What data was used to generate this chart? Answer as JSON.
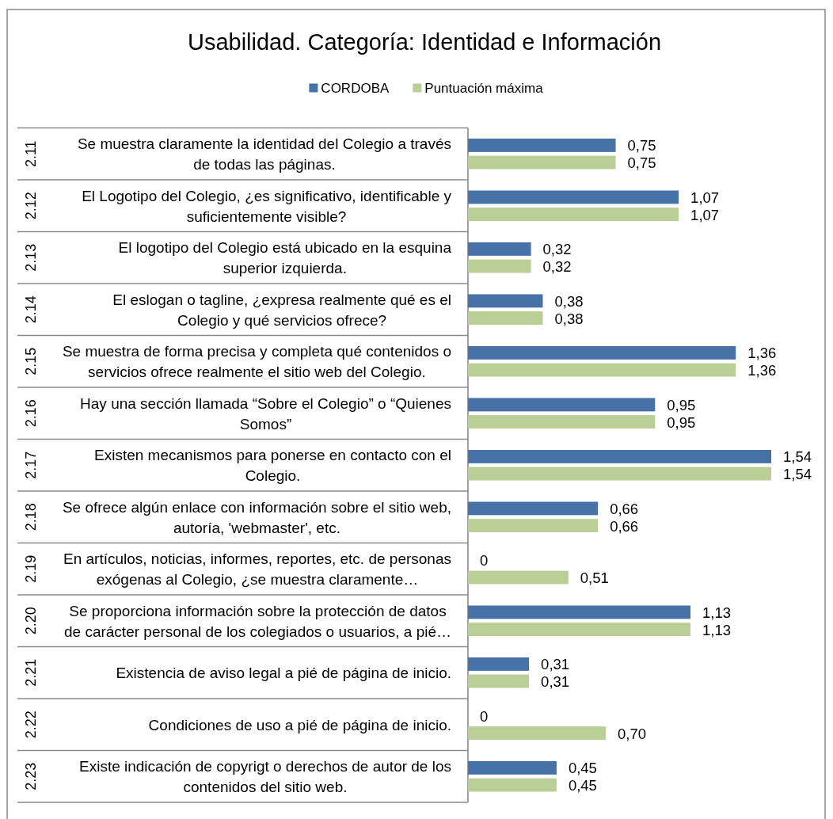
{
  "chart_data": {
    "type": "bar",
    "orientation": "horizontal",
    "title": "Usabilidad. Categoría: Identidad e Información",
    "legend": "top",
    "categories": [
      "Se muestra claramente la identidad del Colegio a través de todas las páginas.",
      "El Logotipo del Colegio, ¿es significativo, identificable y suficientemente visible?",
      "El logotipo del Colegio está ubicado en la esquina superior izquierda.",
      "El eslogan o tagline, ¿expresa realmente qué es el Colegio y qué servicios ofrece?",
      "Se muestra de forma precisa y completa qué contenidos o servicios ofrece realmente el sitio web del Colegio.",
      "Hay una sección llamada “Sobre el Colegio” o “Quienes Somos”",
      "Existen mecanismos para ponerse en contacto con el Colegio.",
      "Se ofrece algún enlace con información sobre el sitio web, autoría, 'webmaster', etc.",
      "En artículos, noticias, informes, reportes, etc. de personas exógenas al Colegio, ¿se muestra claramente…",
      "Se proporciona información sobre la protección de datos de carácter personal de los colegiados o usuarios, a pié…",
      "Existencia de aviso legal a pié de página de inicio.",
      "Condiciones de uso a pié de página de inicio.",
      "Existe indicación de copyrigt o derechos de autor de los contenidos del sitio web."
    ],
    "y2_categories": [
      "2.11",
      "2.12",
      "2.13",
      "2.14",
      "2.15",
      "2.16",
      "2.17",
      "2.18",
      "2.19",
      "2.20",
      "2.21",
      "2.22",
      "2.23"
    ],
    "series": [
      {
        "name": "CORDOBA",
        "color": "#4672a8",
        "values": [
          0.75,
          1.07,
          0.32,
          0.38,
          1.36,
          0.95,
          1.54,
          0.66,
          0,
          1.13,
          0.31,
          0,
          0.45
        ],
        "value_labels": [
          "0,75",
          "1,07",
          "0,32",
          "0,38",
          "1,36",
          "0,95",
          "1,54",
          "0,66",
          "0",
          "1,13",
          "0,31",
          "0",
          "0,45"
        ]
      },
      {
        "name": "Puntuación máxima",
        "color": "#b9cf96",
        "values": [
          0.75,
          1.07,
          0.32,
          0.38,
          1.36,
          0.95,
          1.54,
          0.66,
          0.51,
          1.13,
          0.31,
          0.7,
          0.45
        ],
        "value_labels": [
          "0,75",
          "1,07",
          "0,32",
          "0,38",
          "1,36",
          "0,95",
          "1,54",
          "0,66",
          "0,51",
          "1,13",
          "0,31",
          "0,70",
          "0,45"
        ]
      }
    ]
  }
}
